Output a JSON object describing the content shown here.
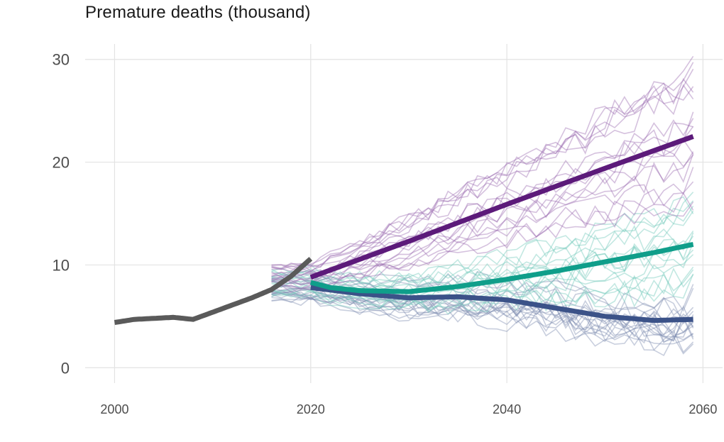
{
  "chart_data": {
    "type": "line",
    "title": "Premature deaths (thousand)",
    "xlabel": "",
    "ylabel": "",
    "xlim": [
      1997,
      2062
    ],
    "ylim": [
      -1.5,
      31.5
    ],
    "x_ticks": [
      2000,
      2020,
      2040,
      2060
    ],
    "y_ticks": [
      0,
      10,
      20,
      30
    ],
    "grid": true,
    "legend": "none",
    "colors": {
      "historical": "#5a5a5a",
      "high": "#5c1a7a",
      "middle": "#0f9e8a",
      "low": "#3b5288",
      "high_faint": "#9a6bb0",
      "middle_faint": "#6fc7bb",
      "low_faint": "#7f8db0"
    },
    "series": [
      {
        "key": "historical",
        "x": [
          2000,
          2002,
          2004,
          2006,
          2008,
          2010,
          2012,
          2014,
          2016,
          2018,
          2020
        ],
        "y": [
          4.4,
          4.7,
          4.8,
          4.9,
          4.7,
          5.4,
          6.1,
          6.8,
          7.6,
          8.9,
          10.6
        ]
      },
      {
        "key": "high",
        "x": [
          2020,
          2030,
          2040,
          2050,
          2059
        ],
        "y": [
          8.8,
          12.3,
          15.9,
          19.4,
          22.5
        ]
      },
      {
        "key": "middle",
        "x": [
          2020,
          2022,
          2025,
          2030,
          2035,
          2040,
          2045,
          2050,
          2055,
          2059
        ],
        "y": [
          8.3,
          7.8,
          7.5,
          7.4,
          7.9,
          8.6,
          9.4,
          10.3,
          11.2,
          12.0
        ]
      },
      {
        "key": "low",
        "x": [
          2020,
          2025,
          2030,
          2035,
          2040,
          2045,
          2050,
          2055,
          2059
        ],
        "y": [
          7.8,
          7.2,
          6.8,
          6.9,
          6.6,
          5.8,
          5.0,
          4.6,
          4.7
        ]
      }
    ]
  }
}
